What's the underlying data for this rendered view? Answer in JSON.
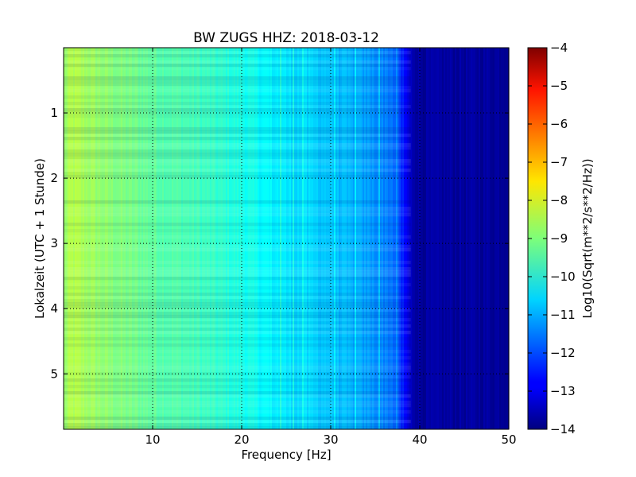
{
  "chart_data": {
    "type": "heatmap",
    "title": "BW ZUGS HHZ: 2018-03-12",
    "xlabel": "Frequency [Hz]",
    "ylabel": "Lokalzeit (UTC + 1 Stunde)",
    "xlim": [
      0,
      50
    ],
    "ylim": [
      5.85,
      0
    ],
    "y_inverted": true,
    "xticks": [
      10,
      20,
      30,
      40,
      50
    ],
    "yticks": [
      1,
      2,
      3,
      4,
      5
    ],
    "grid": true,
    "grid_style": "dotted",
    "colormap": "jet",
    "colorbar": {
      "label": "Log10(Sqrt(m**2/s**2/Hz))",
      "range": [
        -14,
        -4
      ],
      "ticks": [
        -4,
        -5,
        -6,
        -7,
        -8,
        -9,
        -10,
        -11,
        -12,
        -13,
        -14
      ]
    },
    "frequency_profile": {
      "frequency_hz": [
        0,
        1,
        5,
        10,
        15,
        20,
        25,
        30,
        35,
        37,
        38,
        39,
        40,
        50
      ],
      "level": [
        -8.8,
        -8.5,
        -8.9,
        -9.3,
        -9.6,
        -10.0,
        -10.5,
        -10.8,
        -11.3,
        -11.6,
        -12.4,
        -13.4,
        -13.7,
        -13.7
      ]
    }
  }
}
